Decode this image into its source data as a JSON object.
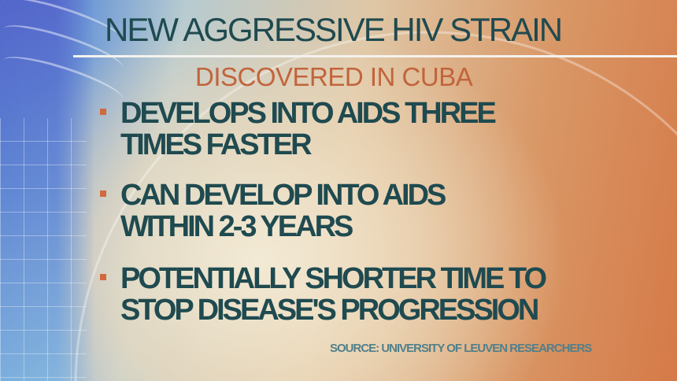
{
  "title": "NEW AGGRESSIVE HIV STRAIN",
  "subtitle": "DISCOVERED IN CUBA",
  "bullets": [
    {
      "line1": "DEVELOPS INTO AIDS THREE",
      "line2": "TIMES FASTER"
    },
    {
      "line1": "CAN DEVELOP INTO AIDS",
      "line2": "WITHIN 2-3 YEARS"
    },
    {
      "line1": "POTENTIALLY SHORTER TIME TO",
      "line2": "STOP DISEASE'S PROGRESSION"
    }
  ],
  "source": "SOURCE: UNIVERSITY OF LEUVEN RESEARCHERS",
  "colors": {
    "text": "#1f4a50",
    "accent": "#c2643c",
    "bullet": "#d1693d",
    "source": "#4f7f8a"
  }
}
